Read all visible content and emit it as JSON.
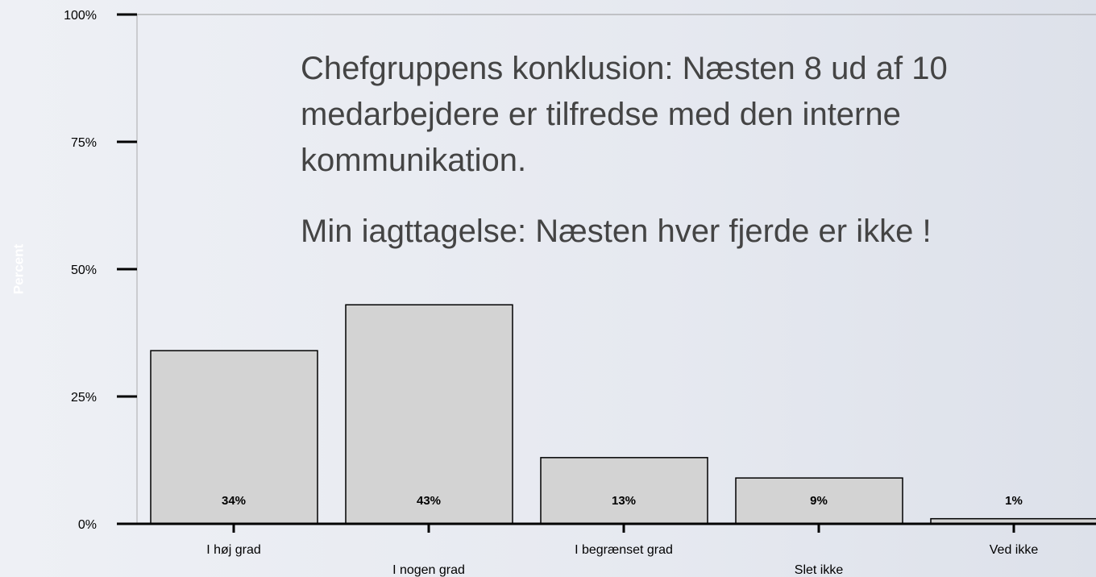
{
  "chart_data": {
    "type": "bar",
    "annotations": [
      [
        "Chefgruppens konklusion: Næsten 8 ud af 10",
        "medarbejdere er tilfredse med den interne",
        "kommunikation."
      ],
      [
        "Min iagttagelse: Næsten hver fjerde er ikke !"
      ]
    ],
    "y_label": "Percent",
    "categories": [
      "I høj grad",
      "I nogen grad",
      "I begrænset grad",
      "Slet ikke",
      "Ved ikke"
    ],
    "values": [
      34,
      43,
      13,
      9,
      1
    ],
    "value_labels": [
      "34%",
      "43%",
      "13%",
      "9%",
      "1%"
    ],
    "color": "#d3d3d3",
    "ylim": [
      0,
      100
    ],
    "yticks": [
      {
        "value": 0,
        "label": "0%"
      },
      {
        "value": 25,
        "label": "25%"
      },
      {
        "value": 50,
        "label": "50%"
      },
      {
        "value": 75,
        "label": "75%"
      },
      {
        "value": 100,
        "label": "100%"
      }
    ]
  }
}
